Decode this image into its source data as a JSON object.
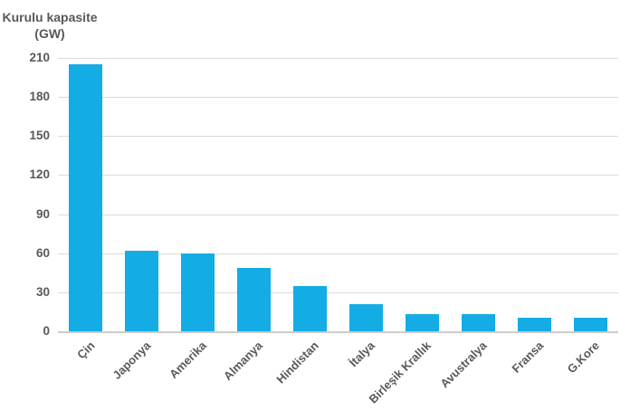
{
  "chart_data": {
    "type": "bar",
    "title_line1": "Kurulu kapasite",
    "title_line2": "(GW)",
    "ylabel": "Kurulu kapasite (GW)",
    "categories": [
      "Çin",
      "Japonya",
      "Amerika",
      "Almanya",
      "Hindistan",
      "İtalya",
      "Birleşik Krallık",
      "Avustralya",
      "Fransa",
      "G.Kore"
    ],
    "values": [
      205,
      62,
      60,
      49,
      35,
      21,
      13.5,
      13.4,
      10.6,
      10.3
    ],
    "ylim": [
      0,
      210
    ],
    "yticks": [
      0,
      30,
      60,
      90,
      120,
      150,
      180,
      210
    ],
    "grid": "horizontal",
    "legend": "none",
    "colors": {
      "bar": "#14ACE5",
      "gridline": "#DADADA",
      "axis_line": "#CCCCCC",
      "text": "#595959",
      "background": "#FFFFFF"
    }
  }
}
